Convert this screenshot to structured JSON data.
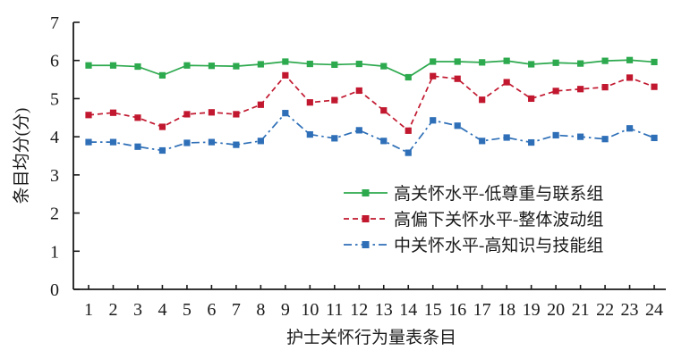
{
  "chart_data": {
    "type": "line",
    "title": "",
    "xlabel": "护士关怀行为量表条目",
    "ylabel": "条目均分(分)",
    "x": [
      1,
      2,
      3,
      4,
      5,
      6,
      7,
      8,
      9,
      10,
      11,
      12,
      13,
      14,
      15,
      16,
      17,
      18,
      19,
      20,
      21,
      22,
      23,
      24
    ],
    "ylim": [
      0,
      7
    ],
    "yticks": [
      0,
      1,
      2,
      3,
      4,
      5,
      6,
      7
    ],
    "grid": "off",
    "legend_position": "inside-lower-center",
    "series": [
      {
        "name": "高关怀水平-低尊重与联系组",
        "color": "#2DA94E",
        "line_style": "solid",
        "marker": "square",
        "values": [
          5.87,
          5.87,
          5.84,
          5.61,
          5.87,
          5.86,
          5.85,
          5.9,
          5.97,
          5.91,
          5.89,
          5.91,
          5.85,
          5.56,
          5.97,
          5.97,
          5.95,
          5.99,
          5.9,
          5.94,
          5.92,
          5.99,
          6.01,
          5.96
        ]
      },
      {
        "name": "高偏下关怀水平-整体波动组",
        "color": "#C1182F",
        "line_style": "dashed",
        "marker": "square",
        "values": [
          4.57,
          4.63,
          4.5,
          4.26,
          4.59,
          4.64,
          4.59,
          4.84,
          5.61,
          4.9,
          4.96,
          5.21,
          4.69,
          4.16,
          5.59,
          5.52,
          4.97,
          5.43,
          5.0,
          5.2,
          5.25,
          5.3,
          5.55,
          5.31
        ]
      },
      {
        "name": "中关怀水平-高知识与技能组",
        "color": "#2E6FB7",
        "line_style": "dash-dot",
        "marker": "square",
        "values": [
          3.86,
          3.86,
          3.74,
          3.64,
          3.84,
          3.86,
          3.79,
          3.89,
          4.62,
          4.06,
          3.96,
          4.17,
          3.89,
          3.58,
          4.43,
          4.29,
          3.89,
          3.98,
          3.85,
          4.04,
          4.0,
          3.94,
          4.22,
          3.97
        ]
      }
    ]
  }
}
